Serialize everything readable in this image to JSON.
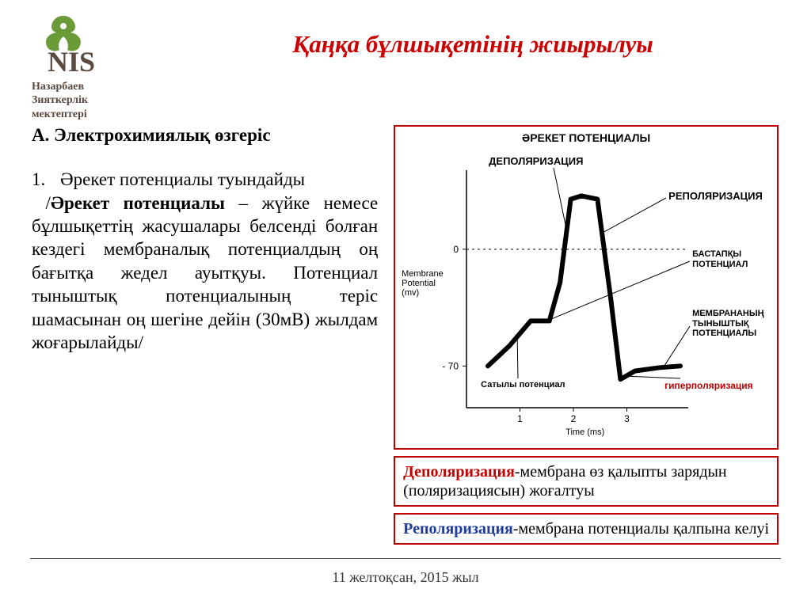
{
  "logo": {
    "acronym": "NIS",
    "line1": "Назарбаев",
    "line2": "Зияткерлік",
    "line3": "мектептері",
    "leaf_color": "#6b9b37",
    "text_color": "#5b4a3f"
  },
  "title": "Қаңқа бұлшықетінің жиырылуы",
  "section_heading": "А. Электрохимиялық өзгеріс",
  "list_num": "1.",
  "list_lead": "Әрекет потенциалы туындайды",
  "body_term": "Әрекет потенциалы",
  "body_rest": " – жүйке немесе бұлшықеттің жасушалары белсенді болған кездегі мембраналық потенциалдың оң бағытқа жедел ауытқуы. Потенциал тыныштық потенциалының теріс шамасынан оң шегіне дейін (30мВ) жылдам жоғарылайды/",
  "chart": {
    "type": "line",
    "title": "ӘРЕКЕТ ПОТЕНЦИАЛЫ",
    "xlabel": "Time (ms)",
    "ylabel1": "Membrane",
    "ylabel2": "Potential",
    "ylabel3": "(mv)",
    "y_ticks": [
      -70,
      0
    ],
    "x_ticks": [
      1,
      2,
      3
    ],
    "ylim": [
      -95,
      45
    ],
    "xlim": [
      0,
      4
    ],
    "curve_color": "#000000",
    "curve_width": 6,
    "labels": {
      "depol": "ДЕПОЛЯРИЗАЦИЯ",
      "repol": "РЕПОЛЯРИЗАЦИЯ",
      "threshold": "БАСТАПҚЫ\nПОТЕНЦИАЛ",
      "resting": "МЕМБРАНАНЫҢ\nТЫНЫШТЫҚ\nПОТЕНЦИАЛЫ",
      "graded": "Сатылы потенциал",
      "hyper": "гиперполяризация"
    },
    "points": [
      {
        "x": 0.4,
        "y": -70
      },
      {
        "x": 0.8,
        "y": -58
      },
      {
        "x": 1.2,
        "y": -43
      },
      {
        "x": 1.55,
        "y": -43
      },
      {
        "x": 1.75,
        "y": -20
      },
      {
        "x": 1.95,
        "y": 30
      },
      {
        "x": 2.15,
        "y": 32
      },
      {
        "x": 2.45,
        "y": 30
      },
      {
        "x": 2.7,
        "y": -30
      },
      {
        "x": 2.88,
        "y": -78
      },
      {
        "x": 3.15,
        "y": -73
      },
      {
        "x": 3.6,
        "y": -71
      },
      {
        "x": 4.0,
        "y": -70
      }
    ],
    "border_color": "#c00000",
    "grid_color": "#000000"
  },
  "def1": {
    "term": "Деполяризация",
    "rest": "-мембрана өз қалыпты зарядын (поляризациясын) жоғалтуы"
  },
  "def2": {
    "term": "Реполяризация",
    "rest": "-мембрана потенциалы қалпына келуі"
  },
  "footer": "11 желтоқсан, 2015 жыл",
  "colors": {
    "title": "#cc0000",
    "box_border": "#c00000",
    "text": "#000000"
  }
}
